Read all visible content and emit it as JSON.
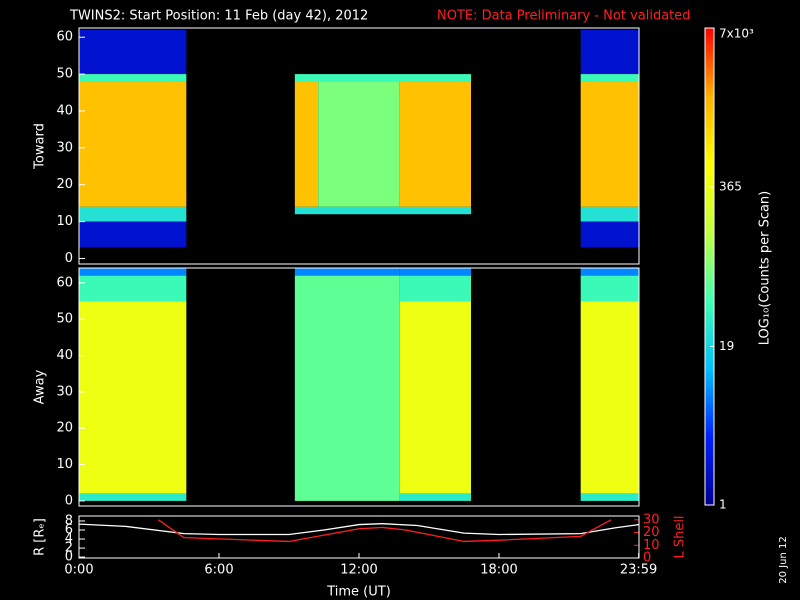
{
  "title": "TWINS2: Start Position: 11 Feb (day  42), 2012",
  "note": "NOTE: Data Preliminary - Not validated",
  "date_stamp": "20 Jun 12",
  "colorbar": {
    "label": "LOG₁₀(Counts per Scan)",
    "lim": [
      1,
      7000
    ],
    "log": true,
    "ticks": [
      1,
      19,
      365,
      {
        "value": 7000,
        "label": "7x10³"
      }
    ],
    "colormap": [
      "#000090",
      "#0020ff",
      "#00c0ff",
      "#40ffb0",
      "#c0ff40",
      "#ffff00",
      "#ffb000",
      "#ff0000"
    ]
  },
  "chart_data": [
    {
      "type": "heatmap",
      "ylabel": "Toward",
      "xlim": [
        0,
        24
      ],
      "ylim": [
        -1.5,
        62.5
      ],
      "yticks": [
        0,
        10,
        20,
        30,
        40,
        50,
        60
      ],
      "blocks": [
        {
          "x": [
            0,
            4.6
          ],
          "y": [
            50,
            62
          ],
          "value": 2
        },
        {
          "x": [
            0,
            4.6
          ],
          "y": [
            48,
            50
          ],
          "value": 40
        },
        {
          "x": [
            0,
            4.6
          ],
          "y": [
            14,
            48
          ],
          "value": 1500
        },
        {
          "x": [
            0,
            4.6
          ],
          "y": [
            10,
            14
          ],
          "value": 25
        },
        {
          "x": [
            0,
            4.6
          ],
          "y": [
            3,
            10
          ],
          "value": 2
        },
        {
          "x": [
            9.25,
            16.8
          ],
          "y": [
            48,
            50
          ],
          "value": 40
        },
        {
          "x": [
            9.25,
            10.25
          ],
          "y": [
            14,
            48
          ],
          "value": 1500
        },
        {
          "x": [
            10.25,
            13.75
          ],
          "y": [
            14,
            48
          ],
          "value": 80
        },
        {
          "x": [
            13.75,
            16.8
          ],
          "y": [
            14,
            48
          ],
          "value": 1500
        },
        {
          "x": [
            9.25,
            16.8
          ],
          "y": [
            12,
            14
          ],
          "value": 25
        },
        {
          "x": [
            21.5,
            24
          ],
          "y": [
            50,
            62
          ],
          "value": 2
        },
        {
          "x": [
            21.5,
            24
          ],
          "y": [
            48,
            50
          ],
          "value": 40
        },
        {
          "x": [
            21.5,
            24
          ],
          "y": [
            14,
            48
          ],
          "value": 1500
        },
        {
          "x": [
            21.5,
            24
          ],
          "y": [
            10,
            14
          ],
          "value": 25
        },
        {
          "x": [
            21.5,
            24
          ],
          "y": [
            3,
            10
          ],
          "value": 2
        }
      ]
    },
    {
      "type": "heatmap",
      "ylabel": "Away",
      "xlim": [
        0,
        24
      ],
      "ylim": [
        -1.4,
        64.1
      ],
      "yticks": [
        0,
        10,
        20,
        30,
        40,
        50,
        60
      ],
      "blocks": [
        {
          "x": [
            0,
            4.6
          ],
          "y": [
            62,
            64
          ],
          "value": 8
        },
        {
          "x": [
            0,
            4.6
          ],
          "y": [
            55,
            62
          ],
          "value": 40
        },
        {
          "x": [
            0,
            4.6
          ],
          "y": [
            2,
            55
          ],
          "value": 400
        },
        {
          "x": [
            0,
            4.6
          ],
          "y": [
            0,
            2
          ],
          "value": 30
        },
        {
          "x": [
            9.25,
            13.75
          ],
          "y": [
            62,
            64
          ],
          "value": 8
        },
        {
          "x": [
            9.25,
            13.75
          ],
          "y": [
            0,
            62
          ],
          "value": 60
        },
        {
          "x": [
            13.75,
            16.8
          ],
          "y": [
            62,
            64
          ],
          "value": 8
        },
        {
          "x": [
            13.75,
            16.8
          ],
          "y": [
            55,
            62
          ],
          "value": 40
        },
        {
          "x": [
            13.75,
            16.8
          ],
          "y": [
            2,
            55
          ],
          "value": 400
        },
        {
          "x": [
            13.75,
            16.8
          ],
          "y": [
            0,
            2
          ],
          "value": 30
        },
        {
          "x": [
            21.5,
            24
          ],
          "y": [
            62,
            64
          ],
          "value": 8
        },
        {
          "x": [
            21.5,
            24
          ],
          "y": [
            55,
            62
          ],
          "value": 40
        },
        {
          "x": [
            21.5,
            24
          ],
          "y": [
            2,
            55
          ],
          "value": 400
        },
        {
          "x": [
            21.5,
            24
          ],
          "y": [
            0,
            2
          ],
          "value": 30
        }
      ]
    },
    {
      "type": "line",
      "ylabel": "R [Rₑ]",
      "y2label": "L Shell",
      "xlabel": "Time (UT)",
      "xlim": [
        0,
        24
      ],
      "xticks": [
        {
          "value": 0,
          "label": "0:00"
        },
        {
          "value": 6,
          "label": "6:00"
        },
        {
          "value": 12,
          "label": "12:00"
        },
        {
          "value": 18,
          "label": "18:00"
        },
        {
          "value": 23.983,
          "label": "23:59"
        }
      ],
      "ylim": [
        -0.2,
        9.1
      ],
      "yticks": [
        0,
        2,
        4,
        6,
        8
      ],
      "y2lim": [
        0,
        33
      ],
      "y2ticks": [
        0,
        10,
        20,
        30
      ],
      "series": [
        {
          "name": "R",
          "color": "#ffffff",
          "x": [
            0,
            2,
            4.5,
            6,
            9,
            10.5,
            12,
            13,
            14.5,
            16.5,
            18,
            21.5,
            23,
            24
          ],
          "values": [
            7.3,
            6.8,
            5.2,
            5,
            5,
            6,
            7.2,
            7.4,
            7,
            5.3,
            5,
            5.2,
            6.5,
            7.2
          ]
        },
        {
          "name": "L Shell",
          "color": "#ff2020",
          "axis": "y2",
          "x": [
            3.4,
            4.5,
            6,
            9,
            10.5,
            12,
            13,
            14,
            16.5,
            18,
            21.5,
            22.8
          ],
          "values": [
            30,
            16,
            15,
            13,
            18,
            23,
            24,
            22,
            13,
            14,
            17,
            30
          ]
        }
      ]
    }
  ]
}
